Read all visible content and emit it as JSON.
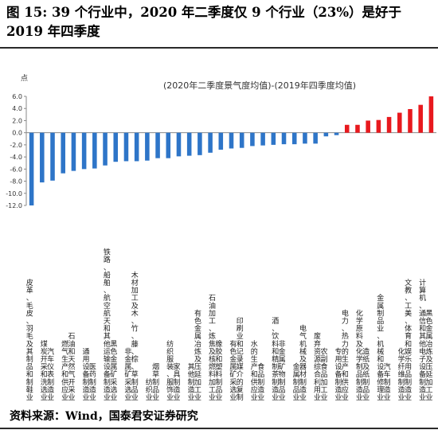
{
  "figure": {
    "title": "图 15: 39 个行业中，2020 年二季度仅 9 个行业（23%）是好于 2019 年四季度",
    "source": "资料来源：Wind，国泰君安证券研究"
  },
  "chart_data": {
    "type": "bar",
    "title": "(2020年二季度景气度均值)-(2019年四季度均值)",
    "ylabel": "点",
    "ylim": [
      -12,
      6
    ],
    "yticks": [
      "6.0",
      "4.0",
      "2.0",
      "0.0",
      "-2.0",
      "-4.0",
      "-6.0",
      "-8.0",
      "-10.0",
      "-12.0"
    ],
    "categories": [
      "皮革、毛皮、羽毛及其制品和制鞋业",
      "煤炭开采和洗选业",
      "汽车仪表制造业",
      "燃气生产和供应业",
      "石油和天然气开采业",
      "通用设备制造业",
      "医药制造业",
      "铁路、船舶、航空航天和其他运输设备制造业",
      "黑色金属矿采选业",
      "非金属矿采选业",
      "木材加工及木、竹、藤、棕、草制品业",
      "纺织业",
      "烟草制品业",
      "纺织服装、服饰业",
      "家具制造业",
      "其他制造业",
      "有色金属冶炼及压延加工业",
      "石油加工、炼焦及核燃料加工业",
      "橡胶和塑料制品业",
      "有色金属矿采选业",
      "印刷业和记录媒介的复制",
      "水的生产和供应业",
      "食品制造业",
      "酒、饮料和精制茶制造业",
      "非金属矿物制品业",
      "金属制品业",
      "电气机械及器材制造业",
      "废弃资源综合利用业",
      "农副食品加工业",
      "专用设备制造业",
      "电力、热力的生产和供应业",
      "化学原料及化学制品制造业",
      "造纸及纸制品业",
      "金属制品业、机械和设备修理业",
      "汽车制造业",
      "化学纤维制造业",
      "文教、工美、体育和娱乐用品制造业",
      "计算机、通信和其他电子设备制造业",
      "黑色金属冶炼及压延加工业"
    ],
    "values": [
      -12.0,
      -8.2,
      -7.9,
      -6.7,
      -6.3,
      -6.0,
      -5.9,
      -5.4,
      -4.8,
      -4.7,
      -4.7,
      -4.6,
      -4.2,
      -4.2,
      -3.9,
      -3.8,
      -3.7,
      -3.3,
      -2.8,
      -2.6,
      -2.5,
      -2.2,
      -2.1,
      -2.0,
      -1.9,
      -1.9,
      -1.8,
      -1.8,
      -0.6,
      -0.4,
      1.3,
      1.3,
      2.0,
      2.1,
      2.6,
      3.3,
      3.9,
      4.6,
      6.0
    ],
    "colors": {
      "negative": "#2e75c8",
      "positive": "#e8191e"
    },
    "grid": false,
    "legend": "none"
  }
}
